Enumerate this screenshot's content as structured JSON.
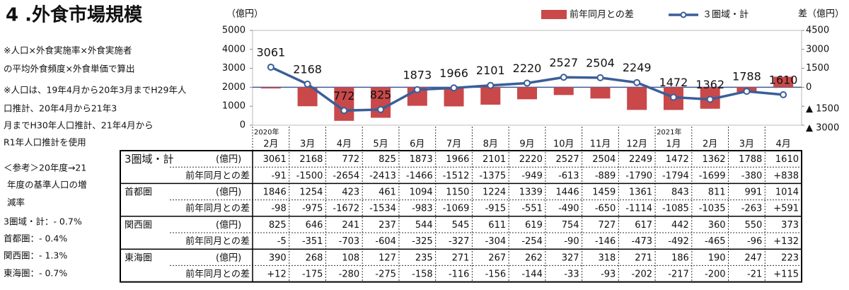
{
  "title": "4 .外食市場規模",
  "notes": [
    "※人口×外食実施率×外食実施者",
    "の平均外食頻度×外食単価で算出",
    "※人口は、19年4月から20年3月までH29年人",
    "口推計、20年4月から21年3",
    "月までH30年人口推計、21年4月から",
    "R1年人口推計を使用",
    "＜参考＞20年度→21",
    "年度の基準人口の増",
    "減率",
    "3圏域・計：- 0.7%",
    "首都圏：- 0.4%",
    "関西圏：- 1.3%",
    "東海圏：- 0.7%"
  ],
  "chart_data": {
    "type": "bar",
    "ylabel": "（億円）",
    "y2label": "差（億円）",
    "categories": [
      "2月",
      "3月",
      "4月",
      "5月",
      "6月",
      "7月",
      "8月",
      "9月",
      "10月",
      "11月",
      "12月",
      "1月",
      "2月",
      "3月",
      "4月"
    ],
    "year_labels": [
      "2020年",
      null,
      null,
      null,
      null,
      null,
      null,
      null,
      null,
      null,
      null,
      "2021年",
      null,
      null,
      null
    ],
    "series": [
      {
        "name": "前年同月との差",
        "type": "bar",
        "axis": "y2",
        "color": "#c9484a",
        "values": [
          -91,
          -1500,
          -2654,
          -2413,
          -1466,
          -1512,
          -1375,
          -949,
          -613,
          -889,
          -1790,
          -1794,
          -1699,
          -380,
          838
        ]
      },
      {
        "name": "３圏域・計",
        "type": "line",
        "color": "#3b5e98",
        "values": [
          3061,
          2168,
          772,
          825,
          1873,
          1966,
          2101,
          2220,
          2527,
          2504,
          2249,
          1472,
          1362,
          1788,
          1610
        ]
      }
    ],
    "ylim": [
      0,
      5000
    ],
    "yticks": [
      0,
      1000,
      2000,
      3000,
      4000,
      5000
    ],
    "y2lim": [
      -3000,
      4500
    ],
    "y2ticks": [
      4500,
      3000,
      1500,
      0,
      {
        "value": -1500,
        "label": "▲ 1500"
      },
      {
        "value": -3000,
        "label": "▲ 3000"
      }
    ],
    "legend": "top"
  },
  "table": {
    "rows": [
      {
        "name": "3圏域・計",
        "unit": "(億円)",
        "cells": [
          "3061",
          "2168",
          "772",
          "825",
          "1873",
          "1966",
          "2101",
          "2220",
          "2527",
          "2504",
          "2249",
          "1472",
          "1362",
          "1788",
          "1610"
        ]
      },
      {
        "name": "前年同月との差",
        "cells": [
          "-91",
          "-1500",
          "-2654",
          "-2413",
          "-1466",
          "-1512",
          "-1375",
          "-949",
          "-613",
          "-889",
          "-1790",
          "-1794",
          "-1699",
          "-380",
          "+838"
        ]
      },
      {
        "name": "首都圏",
        "unit": "(億円)",
        "cells": [
          "1846",
          "1254",
          "423",
          "461",
          "1094",
          "1150",
          "1224",
          "1339",
          "1446",
          "1459",
          "1361",
          "843",
          "811",
          "991",
          "1014"
        ]
      },
      {
        "name": "前年同月との差",
        "cells": [
          "-98",
          "-975",
          "-1672",
          "-1534",
          "-983",
          "-1069",
          "-915",
          "-551",
          "-490",
          "-650",
          "-1114",
          "-1085",
          "-1035",
          "-263",
          "+591"
        ]
      },
      {
        "name": "関西圏",
        "unit": "(億円)",
        "cells": [
          "825",
          "646",
          "241",
          "237",
          "544",
          "545",
          "611",
          "619",
          "754",
          "727",
          "617",
          "442",
          "360",
          "550",
          "373"
        ]
      },
      {
        "name": "前年同月との差",
        "cells": [
          "-5",
          "-351",
          "-703",
          "-604",
          "-325",
          "-327",
          "-304",
          "-254",
          "-90",
          "-146",
          "-473",
          "-492",
          "-465",
          "-96",
          "+132"
        ]
      },
      {
        "name": "東海圏",
        "unit": "(億円)",
        "cells": [
          "390",
          "268",
          "108",
          "127",
          "235",
          "271",
          "267",
          "262",
          "327",
          "318",
          "271",
          "186",
          "190",
          "247",
          "223"
        ]
      },
      {
        "name": "前年同月との差",
        "cells": [
          "+12",
          "-175",
          "-280",
          "-275",
          "-158",
          "-116",
          "-156",
          "-144",
          "-33",
          "-93",
          "-202",
          "-217",
          "-200",
          "-21",
          "+115"
        ]
      }
    ]
  }
}
